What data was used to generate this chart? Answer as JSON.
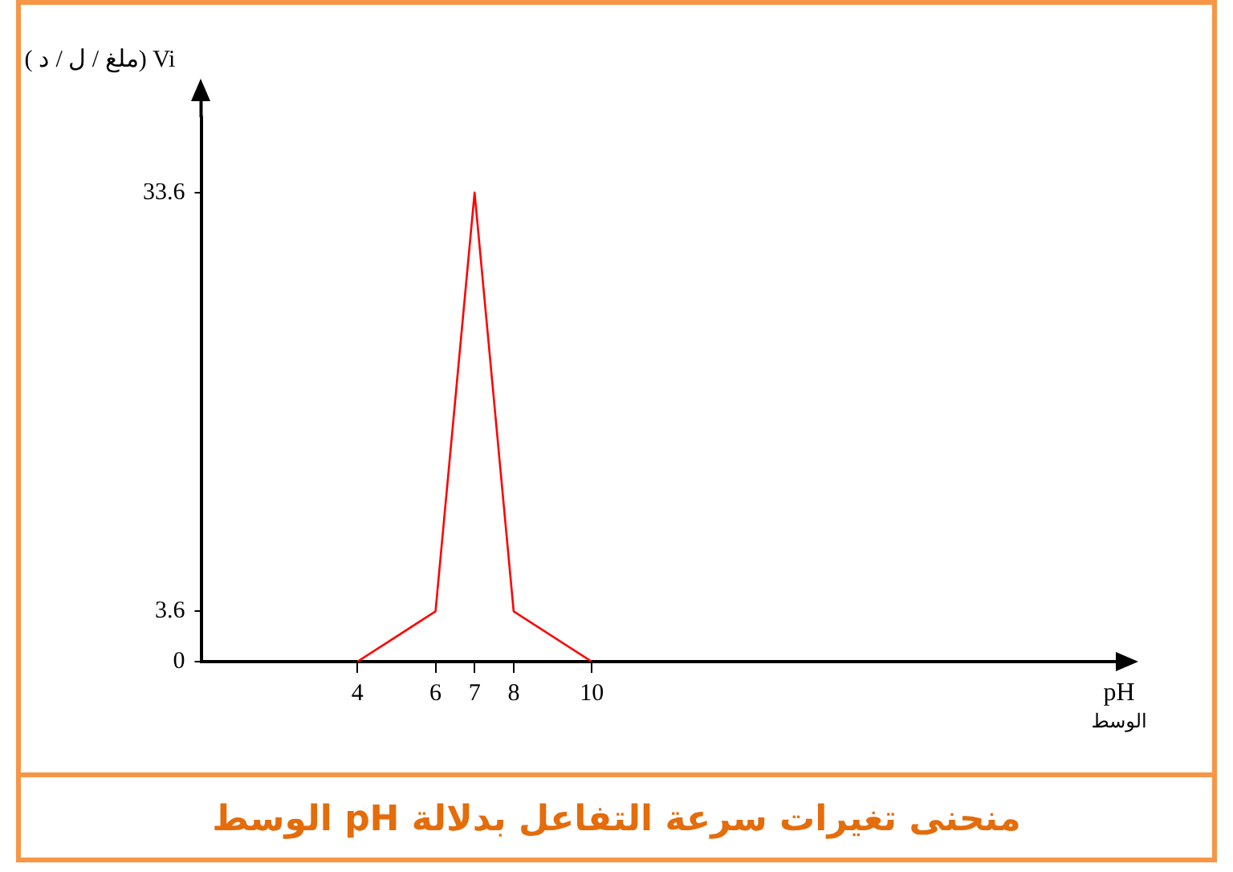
{
  "chart_data": {
    "type": "line",
    "title": "منحنى تغيرات سرعة التفاعل بدلالة pH الوسط",
    "xlabel": "pH\nالوسط",
    "ylabel": "Vi (ملغ / ل / د )",
    "x": [
      4,
      6,
      7,
      8,
      10
    ],
    "series": [
      {
        "color": "#ff0000",
        "values": [
          0,
          3.6,
          33.6,
          3.6,
          0
        ]
      }
    ],
    "xlim": [
      0,
      23
    ],
    "xticks": [
      4,
      6,
      7,
      8,
      10
    ],
    "ylim": [
      0,
      39
    ],
    "yticks": [
      0,
      3.6,
      33.6
    ],
    "grid": false,
    "legend": false,
    "marker": "none",
    "line_style": "solid"
  }
}
